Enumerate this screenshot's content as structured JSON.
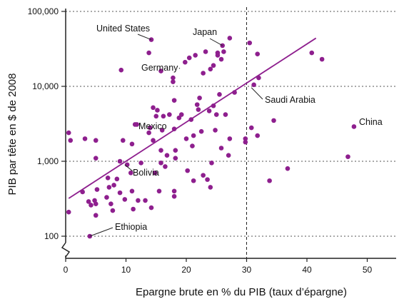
{
  "chart_data": {
    "type": "scatter",
    "xlabel": "Epargne brute en % du PIB (taux d’épargne)",
    "ylabel": "PIB par tête en $ de 2008",
    "x_ticks": [
      "0",
      "10",
      "20",
      "30",
      "40",
      "50"
    ],
    "x_tick_values": [
      0,
      10,
      20,
      30,
      40,
      50
    ],
    "y_ticks": [
      "100",
      "1,000",
      "10,000",
      "100,000"
    ],
    "y_tick_values": [
      100,
      1000,
      10000,
      100000
    ],
    "y_scale": "log",
    "xlim": [
      0,
      55
    ],
    "ylim": [
      100,
      100000
    ],
    "axis_break": "y",
    "grid": "horizontal-dotted",
    "reference_line_x": 30,
    "point_color": "#8e1f8e",
    "trend_color": "#8e1f8e",
    "trend_line": {
      "x": [
        0.5,
        41.5
      ],
      "y": [
        320,
        44000
      ]
    },
    "points": [
      {
        "x": 0.5,
        "y": 2400
      },
      {
        "x": 0.8,
        "y": 1900
      },
      {
        "x": 0.5,
        "y": 210
      },
      {
        "x": 2.8,
        "y": 390
      },
      {
        "x": 3.2,
        "y": 2000
      },
      {
        "x": 3.8,
        "y": 290
      },
      {
        "x": 4.0,
        "y": 100
      },
      {
        "x": 4.2,
        "y": 260
      },
      {
        "x": 4.8,
        "y": 300
      },
      {
        "x": 5.0,
        "y": 190
      },
      {
        "x": 5.0,
        "y": 1900
      },
      {
        "x": 5.0,
        "y": 1100
      },
      {
        "x": 5.2,
        "y": 420
      },
      {
        "x": 5.0,
        "y": 270
      },
      {
        "x": 6.8,
        "y": 330
      },
      {
        "x": 7.0,
        "y": 600
      },
      {
        "x": 7.2,
        "y": 450
      },
      {
        "x": 7.5,
        "y": 270
      },
      {
        "x": 7.8,
        "y": 220
      },
      {
        "x": 8.0,
        "y": 480
      },
      {
        "x": 8.5,
        "y": 580
      },
      {
        "x": 9.0,
        "y": 380
      },
      {
        "x": 9.0,
        "y": 1000
      },
      {
        "x": 9.2,
        "y": 16500
      },
      {
        "x": 9.5,
        "y": 1900
      },
      {
        "x": 9.8,
        "y": 310
      },
      {
        "x": 10.2,
        "y": 900
      },
      {
        "x": 10.8,
        "y": 700
      },
      {
        "x": 11.0,
        "y": 1700
      },
      {
        "x": 11.0,
        "y": 400
      },
      {
        "x": 11.2,
        "y": 230
      },
      {
        "x": 11.5,
        "y": 3100
      },
      {
        "x": 11.8,
        "y": 3100
      },
      {
        "x": 12.0,
        "y": 300
      },
      {
        "x": 12.5,
        "y": 950
      },
      {
        "x": 13.2,
        "y": 300
      },
      {
        "x": 13.8,
        "y": 2400
      },
      {
        "x": 13.8,
        "y": 28000
      },
      {
        "x": 14.0,
        "y": 2800
      },
      {
        "x": 14.2,
        "y": 42000
      },
      {
        "x": 14.2,
        "y": 240
      },
      {
        "x": 14.5,
        "y": 5200
      },
      {
        "x": 14.5,
        "y": 1900
      },
      {
        "x": 14.8,
        "y": 700
      },
      {
        "x": 15.0,
        "y": 4000
      },
      {
        "x": 15.2,
        "y": 4800
      },
      {
        "x": 15.5,
        "y": 400
      },
      {
        "x": 15.8,
        "y": 950
      },
      {
        "x": 15.8,
        "y": 16000
      },
      {
        "x": 15.8,
        "y": 1400
      },
      {
        "x": 16.0,
        "y": 2600
      },
      {
        "x": 16.2,
        "y": 4000
      },
      {
        "x": 16.5,
        "y": 850
      },
      {
        "x": 16.8,
        "y": 1200
      },
      {
        "x": 17.2,
        "y": 4200
      },
      {
        "x": 17.8,
        "y": 13000
      },
      {
        "x": 17.8,
        "y": 11500
      },
      {
        "x": 18.0,
        "y": 400
      },
      {
        "x": 18.0,
        "y": 340
      },
      {
        "x": 18.0,
        "y": 6500
      },
      {
        "x": 18.0,
        "y": 2700
      },
      {
        "x": 18.2,
        "y": 1400
      },
      {
        "x": 18.2,
        "y": 1100
      },
      {
        "x": 18.8,
        "y": 3800
      },
      {
        "x": 19.2,
        "y": 4200
      },
      {
        "x": 19.8,
        "y": 21000
      },
      {
        "x": 20.0,
        "y": 2000
      },
      {
        "x": 20.2,
        "y": 750
      },
      {
        "x": 20.5,
        "y": 24000
      },
      {
        "x": 20.8,
        "y": 3600
      },
      {
        "x": 21.0,
        "y": 1600
      },
      {
        "x": 21.2,
        "y": 2200
      },
      {
        "x": 21.2,
        "y": 550
      },
      {
        "x": 21.5,
        "y": 26000
      },
      {
        "x": 21.8,
        "y": 5700
      },
      {
        "x": 22.0,
        "y": 4900
      },
      {
        "x": 22.2,
        "y": 7000
      },
      {
        "x": 22.5,
        "y": 2500
      },
      {
        "x": 22.8,
        "y": 15000
      },
      {
        "x": 22.8,
        "y": 650
      },
      {
        "x": 23.2,
        "y": 29000
      },
      {
        "x": 23.5,
        "y": 570
      },
      {
        "x": 23.8,
        "y": 4700
      },
      {
        "x": 24.0,
        "y": 17000
      },
      {
        "x": 24.0,
        "y": 450
      },
      {
        "x": 24.2,
        "y": 950
      },
      {
        "x": 24.5,
        "y": 5500
      },
      {
        "x": 24.5,
        "y": 19000
      },
      {
        "x": 24.8,
        "y": 2600
      },
      {
        "x": 25.0,
        "y": 4200
      },
      {
        "x": 25.2,
        "y": 26000
      },
      {
        "x": 25.2,
        "y": 28000
      },
      {
        "x": 25.5,
        "y": 7800
      },
      {
        "x": 25.8,
        "y": 23000
      },
      {
        "x": 25.8,
        "y": 1500
      },
      {
        "x": 26.0,
        "y": 35000
      },
      {
        "x": 26.2,
        "y": 29000
      },
      {
        "x": 26.5,
        "y": 4200
      },
      {
        "x": 27.0,
        "y": 1200
      },
      {
        "x": 27.2,
        "y": 2000
      },
      {
        "x": 27.2,
        "y": 44000
      },
      {
        "x": 28.0,
        "y": 8300
      },
      {
        "x": 29.8,
        "y": 2000
      },
      {
        "x": 29.8,
        "y": 1800
      },
      {
        "x": 30.5,
        "y": 38000
      },
      {
        "x": 30.8,
        "y": 2800
      },
      {
        "x": 31.2,
        "y": 10500
      },
      {
        "x": 31.8,
        "y": 2200
      },
      {
        "x": 31.8,
        "y": 27000
      },
      {
        "x": 32.0,
        "y": 13000
      },
      {
        "x": 33.8,
        "y": 550
      },
      {
        "x": 34.5,
        "y": 3500
      },
      {
        "x": 36.8,
        "y": 800
      },
      {
        "x": 40.8,
        "y": 28000
      },
      {
        "x": 42.5,
        "y": 23000
      },
      {
        "x": 46.8,
        "y": 1150
      },
      {
        "x": 47.8,
        "y": 2900
      }
    ],
    "annotations": [
      {
        "label": "United States",
        "x": 14.2,
        "y": 42000
      },
      {
        "label": "Japan",
        "x": 26.0,
        "y": 35000
      },
      {
        "label": "Germany",
        "x": 18.8,
        "y": 17500
      },
      {
        "label": "Saudi Arabia",
        "x": 30.8,
        "y": 9600
      },
      {
        "label": "China",
        "x": 47.8,
        "y": 2900
      },
      {
        "label": "Mexico",
        "x": 14.8,
        "y": 3400
      },
      {
        "label": "Bolivia",
        "x": 9.8,
        "y": 900
      },
      {
        "label": "Ethiopia",
        "x": 4.0,
        "y": 100
      }
    ]
  }
}
